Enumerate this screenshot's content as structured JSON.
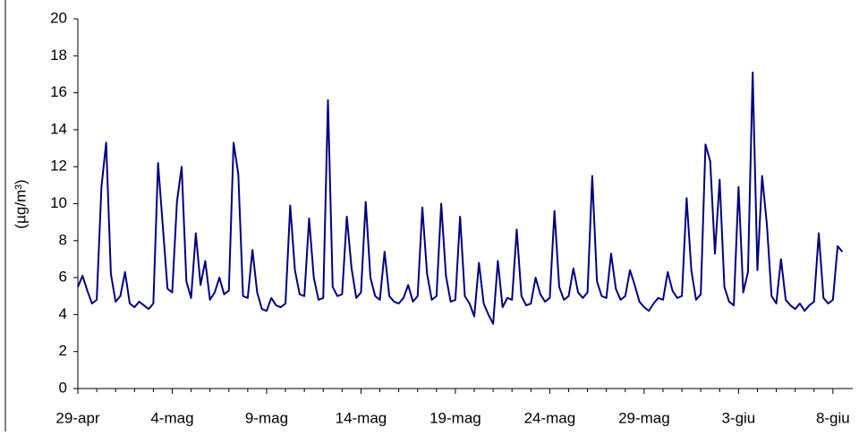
{
  "chart_data": {
    "type": "line",
    "y_label": "(µg/m³)",
    "color": "#000080",
    "ylim": [
      0,
      20
    ],
    "yticks": [
      0,
      2,
      4,
      6,
      8,
      10,
      12,
      14,
      16,
      18,
      20
    ],
    "categories": [
      "29-apr",
      null,
      null,
      null,
      null,
      null,
      null,
      null,
      null,
      null,
      null,
      null,
      null,
      null,
      null,
      null,
      null,
      null,
      null,
      null,
      "4-mag",
      null,
      null,
      null,
      null,
      null,
      null,
      null,
      null,
      null,
      null,
      null,
      null,
      null,
      null,
      null,
      null,
      null,
      null,
      null,
      "9-mag",
      null,
      null,
      null,
      null,
      null,
      null,
      null,
      null,
      null,
      null,
      null,
      null,
      null,
      null,
      null,
      null,
      null,
      null,
      null,
      "14-mag",
      null,
      null,
      null,
      null,
      null,
      null,
      null,
      null,
      null,
      null,
      null,
      null,
      null,
      null,
      null,
      null,
      null,
      null,
      null,
      "19-mag",
      null,
      null,
      null,
      null,
      null,
      null,
      null,
      null,
      null,
      null,
      null,
      null,
      null,
      null,
      null,
      null,
      null,
      null,
      null,
      "24-mag",
      null,
      null,
      null,
      null,
      null,
      null,
      null,
      null,
      null,
      null,
      null,
      null,
      null,
      null,
      null,
      null,
      null,
      null,
      null,
      "29-mag",
      null,
      null,
      null,
      null,
      null,
      null,
      null,
      null,
      null,
      null,
      null,
      null,
      null,
      null,
      null,
      null,
      null,
      null,
      null,
      "3-giu",
      null,
      null,
      null,
      null,
      null,
      null,
      null,
      null,
      null,
      null,
      null,
      null,
      null,
      null,
      null,
      null,
      null,
      null,
      null,
      "8-giu",
      null,
      null
    ],
    "values": [
      5.5,
      6.1,
      5.3,
      4.6,
      4.8,
      10.9,
      13.3,
      6.2,
      4.7,
      5.0,
      6.3,
      4.6,
      4.4,
      4.7,
      4.5,
      4.3,
      4.6,
      12.2,
      8.8,
      5.4,
      5.2,
      10.1,
      12.0,
      5.8,
      4.9,
      8.4,
      5.6,
      6.9,
      4.8,
      5.2,
      6.0,
      5.1,
      5.3,
      13.3,
      11.6,
      5.0,
      4.9,
      7.5,
      5.2,
      4.3,
      4.2,
      4.9,
      4.5,
      4.4,
      4.6,
      9.9,
      6.4,
      5.1,
      5.0,
      9.2,
      6.0,
      4.8,
      4.9,
      15.6,
      5.5,
      5.0,
      5.1,
      9.3,
      6.5,
      4.9,
      5.2,
      10.1,
      6.0,
      5.0,
      4.8,
      7.4,
      5.0,
      4.7,
      4.6,
      4.9,
      5.6,
      4.7,
      5.0,
      9.8,
      6.2,
      4.8,
      5.0,
      10.0,
      6.1,
      4.7,
      4.8,
      9.3,
      5.0,
      4.6,
      3.9,
      6.8,
      4.6,
      4.0,
      3.5,
      6.9,
      4.4,
      4.9,
      4.8,
      8.6,
      5.0,
      4.5,
      4.6,
      6.0,
      5.1,
      4.7,
      4.9,
      9.6,
      5.5,
      4.8,
      5.0,
      6.5,
      5.2,
      4.9,
      5.2,
      11.5,
      5.8,
      5.0,
      4.9,
      7.3,
      5.4,
      4.8,
      5.0,
      6.4,
      5.6,
      4.7,
      4.4,
      4.2,
      4.6,
      4.9,
      4.8,
      6.3,
      5.3,
      4.9,
      5.0,
      10.3,
      6.4,
      4.8,
      5.1,
      13.2,
      12.3,
      7.3,
      11.3,
      5.5,
      4.7,
      4.5,
      10.9,
      5.2,
      6.3,
      17.1,
      6.4,
      11.5,
      8.9,
      5.0,
      4.6,
      7.0,
      4.8,
      4.5,
      4.3,
      4.6,
      4.2,
      4.5,
      4.7,
      8.4,
      4.9,
      4.6,
      4.8,
      7.7,
      7.4
    ]
  }
}
